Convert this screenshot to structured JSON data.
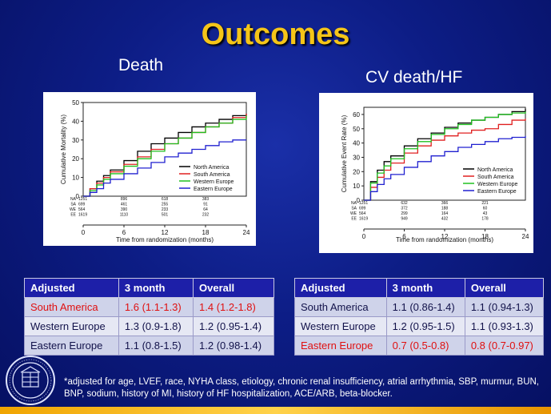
{
  "slide": {
    "title": "Outcomes",
    "left_heading": "Death",
    "right_heading": "CV death/HF",
    "footnote": "*adjusted for age, LVEF, race, NYHA class, etiology, chronic renal insufficiency, atrial arrhythmia,  SBP, murmur, BUN, BNP, sodium, history of MI, history of HF hospitalization, ACE/ARB, beta-blocker.",
    "seal_icon": "university-seal-icon",
    "colors": {
      "title": "#f5c518",
      "header": "#1d1fa8",
      "red_text": "#e01010"
    }
  },
  "tables": [
    {
      "headers": [
        "Adjusted",
        "3 month",
        "Overall"
      ],
      "rows": [
        {
          "cells": [
            "South America",
            "1.6 (1.1-1.3)",
            "1.4 (1.2-1.8)"
          ],
          "highlight": true
        },
        {
          "cells": [
            "Western Europe",
            "1.3 (0.9-1.8)",
            "1.2 (0.95-1.4)"
          ],
          "highlight": false
        },
        {
          "cells": [
            "Eastern Europe",
            "1.1 (0.8-1.5)",
            "1.2 (0.98-1.4)"
          ],
          "highlight": false
        }
      ]
    },
    {
      "headers": [
        "Adjusted",
        "3 month",
        "Overall"
      ],
      "rows": [
        {
          "cells": [
            "South America",
            "1.1 (0.86-1.4)",
            "1.1 (0.94-1.3)"
          ],
          "highlight": false
        },
        {
          "cells": [
            "Western Europe",
            "1.2 (0.95-1.5)",
            "1.1 (0.93-1.3)"
          ],
          "highlight": false
        },
        {
          "cells": [
            "Eastern Europe",
            "0.7 (0.5-0.8)",
            "0.8 (0.7-0.97)"
          ],
          "highlight": true
        }
      ]
    }
  ],
  "chart_data": [
    {
      "type": "line",
      "step": true,
      "title": "",
      "xlabel": "Time from randomization (months)",
      "ylabel": "Cumulative Mortality (%)",
      "xlim": [
        0,
        24
      ],
      "ylim": [
        0,
        50
      ],
      "xticks": [
        0,
        6,
        12,
        18,
        24
      ],
      "yticks": [
        0,
        10,
        20,
        30,
        40,
        50
      ],
      "legend_position": "bottom-right",
      "series": [
        {
          "name": "North America",
          "color": "#000000",
          "x": [
            0,
            1,
            2,
            3,
            4,
            6,
            8,
            10,
            12,
            14,
            16,
            18,
            20,
            22,
            24
          ],
          "y": [
            0,
            4,
            8,
            11,
            14,
            19,
            24,
            28,
            31,
            34,
            37,
            39,
            41,
            43,
            44
          ]
        },
        {
          "name": "South America",
          "color": "#e02020",
          "x": [
            0,
            1,
            2,
            3,
            4,
            6,
            8,
            10,
            12,
            14,
            16,
            18,
            20,
            22,
            24
          ],
          "y": [
            0,
            4,
            7,
            10,
            13,
            17,
            21,
            25,
            28,
            31,
            34,
            37,
            39,
            42,
            44
          ]
        },
        {
          "name": "Western Europe",
          "color": "#20c020",
          "x": [
            0,
            1,
            2,
            3,
            4,
            6,
            8,
            10,
            12,
            14,
            16,
            18,
            20,
            22,
            24
          ],
          "y": [
            0,
            3,
            6,
            9,
            12,
            16,
            20,
            24,
            28,
            31,
            34,
            37,
            39,
            41,
            43
          ]
        },
        {
          "name": "Eastern Europe",
          "color": "#2020d0",
          "x": [
            0,
            1,
            2,
            3,
            4,
            6,
            8,
            10,
            12,
            14,
            16,
            18,
            20,
            22,
            24
          ],
          "y": [
            0,
            2,
            4,
            7,
            9,
            12,
            15,
            18,
            21,
            23,
            25,
            27,
            29,
            30,
            30
          ]
        }
      ],
      "risk_table": {
        "labels": [
          "NA",
          "SA",
          "WE",
          "EE"
        ],
        "times": [
          0,
          6,
          12,
          18
        ],
        "values": [
          [
            "1251",
            "896",
            "618",
            "383"
          ],
          [
            "699",
            "461",
            "255",
            "91"
          ],
          [
            "564",
            "390",
            "233",
            "64"
          ],
          [
            "1619",
            "1110",
            "501",
            "232"
          ]
        ]
      }
    },
    {
      "type": "line",
      "step": true,
      "title": "",
      "xlabel": "Time from randomization (months)",
      "ylabel": "Cumulative Event Rate (%)",
      "xlim": [
        0,
        24
      ],
      "ylim": [
        0,
        65
      ],
      "xticks": [
        0,
        6,
        12,
        18,
        24
      ],
      "yticks": [
        0,
        10,
        20,
        30,
        40,
        50,
        60
      ],
      "legend_position": "bottom-right",
      "series": [
        {
          "name": "North America",
          "color": "#000000",
          "x": [
            0,
            1,
            2,
            3,
            4,
            6,
            8,
            10,
            12,
            14,
            16,
            18,
            20,
            22,
            24
          ],
          "y": [
            0,
            13,
            21,
            27,
            31,
            38,
            43,
            47,
            51,
            54,
            56,
            58,
            60,
            62,
            64
          ]
        },
        {
          "name": "South America",
          "color": "#e02020",
          "x": [
            0,
            1,
            2,
            3,
            4,
            6,
            8,
            10,
            12,
            14,
            16,
            18,
            20,
            22,
            24
          ],
          "y": [
            0,
            9,
            16,
            21,
            26,
            33,
            38,
            42,
            45,
            47,
            49,
            50,
            53,
            56,
            57
          ]
        },
        {
          "name": "Western Europe",
          "color": "#20c020",
          "x": [
            0,
            1,
            2,
            3,
            4,
            6,
            8,
            10,
            12,
            14,
            16,
            18,
            20,
            22,
            24
          ],
          "y": [
            0,
            12,
            19,
            24,
            29,
            36,
            41,
            46,
            50,
            53,
            56,
            58,
            60,
            61,
            62
          ]
        },
        {
          "name": "Eastern Europe",
          "color": "#2020d0",
          "x": [
            0,
            1,
            2,
            3,
            4,
            6,
            8,
            10,
            12,
            14,
            16,
            18,
            20,
            22,
            24
          ],
          "y": [
            0,
            6,
            11,
            15,
            18,
            23,
            27,
            31,
            34,
            37,
            39,
            41,
            43,
            44,
            45
          ]
        }
      ],
      "risk_table": {
        "labels": [
          "NA",
          "SA",
          "WE",
          "EE"
        ],
        "times": [
          0,
          6,
          12,
          18
        ],
        "values": [
          [
            "1251",
            "632",
            "366",
            "221"
          ],
          [
            "699",
            "372",
            "188",
            "60"
          ],
          [
            "564",
            "299",
            "164",
            "43"
          ],
          [
            "1619",
            "949",
            "432",
            "178"
          ]
        ]
      }
    }
  ]
}
